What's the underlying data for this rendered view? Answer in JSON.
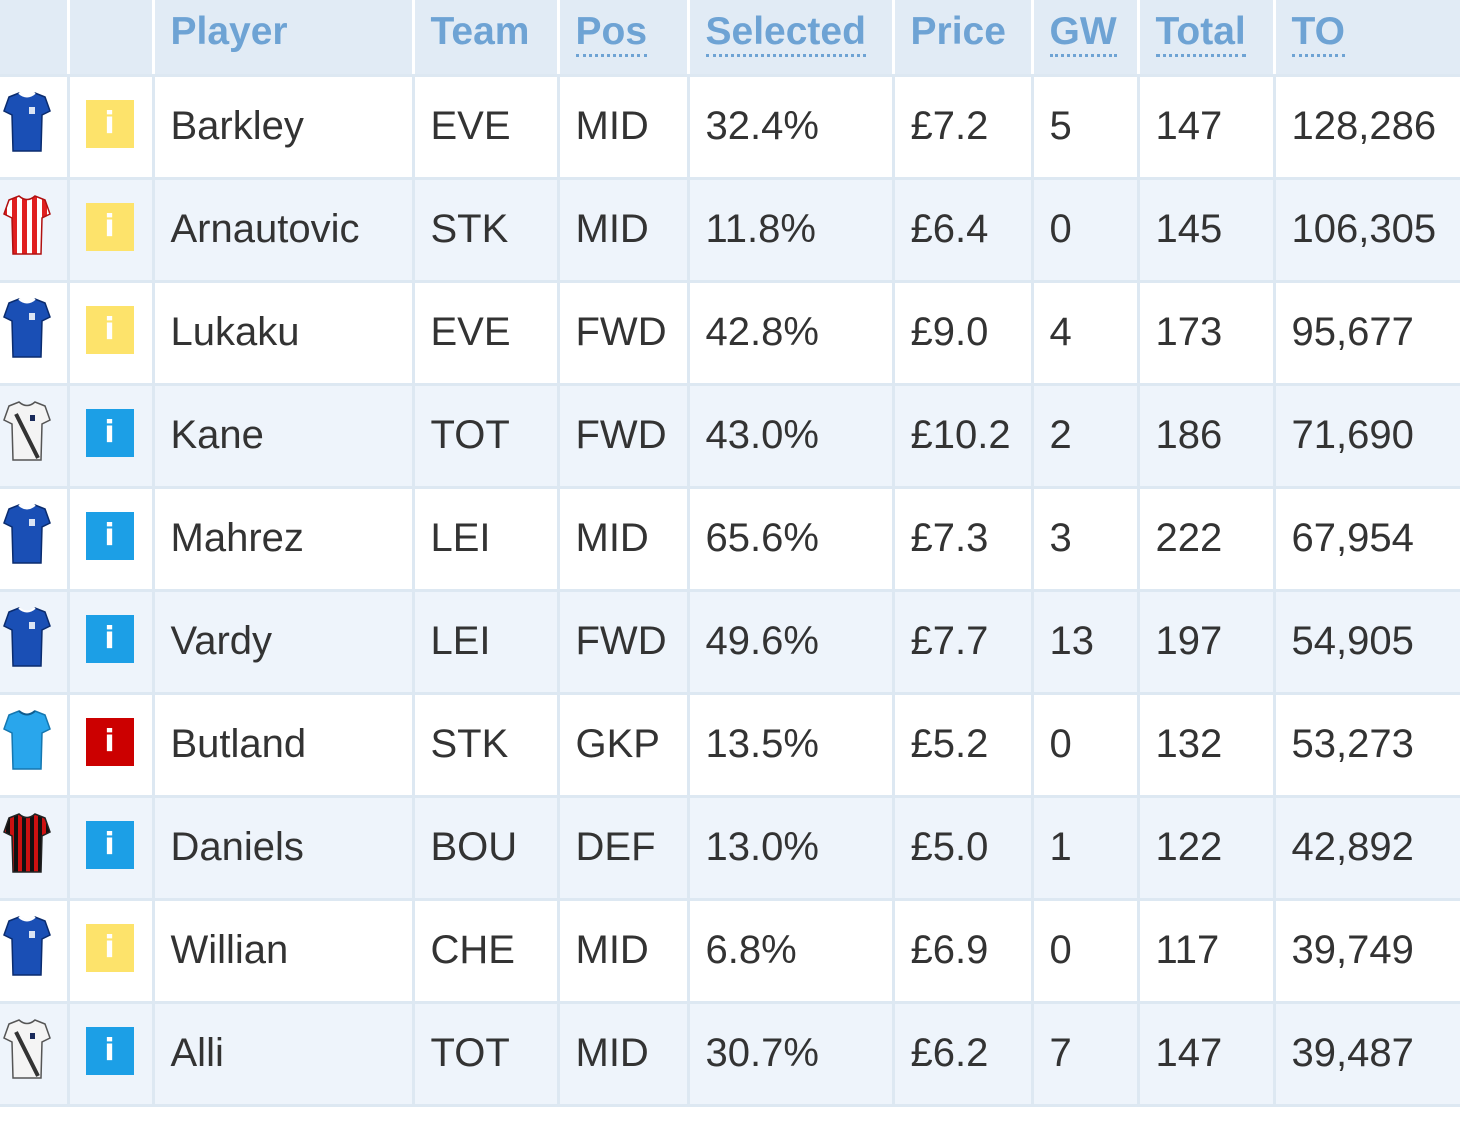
{
  "columns": {
    "player": "Player",
    "team": "Team",
    "pos": "Pos",
    "selected": "Selected",
    "price": "Price",
    "gw": "GW",
    "total": "Total",
    "to": "TO"
  },
  "info_glyph": "i",
  "colors": {
    "info_yellow": "#fde36b",
    "info_blue": "#1c9fe6",
    "info_red": "#cc0000",
    "header_text": "#6ea3d4",
    "header_bg": "#e1ebf5",
    "row_alt_bg": "#eef4fb"
  },
  "rows": [
    {
      "shirt_icon": "everton-shirt-icon",
      "info": "yellow",
      "player": "Barkley",
      "team": "EVE",
      "pos": "MID",
      "selected": "32.4%",
      "price": "£7.2",
      "gw": "5",
      "total": "147",
      "to": "128,286"
    },
    {
      "shirt_icon": "stoke-shirt-icon",
      "info": "yellow",
      "player": "Arnautovic",
      "team": "STK",
      "pos": "MID",
      "selected": "11.8%",
      "price": "£6.4",
      "gw": "0",
      "total": "145",
      "to": "106,305"
    },
    {
      "shirt_icon": "everton-shirt-icon",
      "info": "yellow",
      "player": "Lukaku",
      "team": "EVE",
      "pos": "FWD",
      "selected": "42.8%",
      "price": "£9.0",
      "gw": "4",
      "total": "173",
      "to": "95,677"
    },
    {
      "shirt_icon": "tottenham-shirt-icon",
      "info": "blue",
      "player": "Kane",
      "team": "TOT",
      "pos": "FWD",
      "selected": "43.0%",
      "price": "£10.2",
      "gw": "2",
      "total": "186",
      "to": "71,690"
    },
    {
      "shirt_icon": "leicester-shirt-icon",
      "info": "blue",
      "player": "Mahrez",
      "team": "LEI",
      "pos": "MID",
      "selected": "65.6%",
      "price": "£7.3",
      "gw": "3",
      "total": "222",
      "to": "67,954"
    },
    {
      "shirt_icon": "leicester-shirt-icon",
      "info": "blue",
      "player": "Vardy",
      "team": "LEI",
      "pos": "FWD",
      "selected": "49.6%",
      "price": "£7.7",
      "gw": "13",
      "total": "197",
      "to": "54,905"
    },
    {
      "shirt_icon": "goalkeeper-shirt-icon",
      "info": "red",
      "player": "Butland",
      "team": "STK",
      "pos": "GKP",
      "selected": "13.5%",
      "price": "£5.2",
      "gw": "0",
      "total": "132",
      "to": "53,273"
    },
    {
      "shirt_icon": "bournemouth-shirt-icon",
      "info": "blue",
      "player": "Daniels",
      "team": "BOU",
      "pos": "DEF",
      "selected": "13.0%",
      "price": "£5.0",
      "gw": "1",
      "total": "122",
      "to": "42,892"
    },
    {
      "shirt_icon": "chelsea-shirt-icon",
      "info": "yellow",
      "player": "Willian",
      "team": "CHE",
      "pos": "MID",
      "selected": "6.8%",
      "price": "£6.9",
      "gw": "0",
      "total": "117",
      "to": "39,749"
    },
    {
      "shirt_icon": "tottenham-shirt-icon",
      "info": "blue",
      "player": "Alli",
      "team": "TOT",
      "pos": "MID",
      "selected": "30.7%",
      "price": "£6.2",
      "gw": "7",
      "total": "147",
      "to": "39,487"
    }
  ]
}
